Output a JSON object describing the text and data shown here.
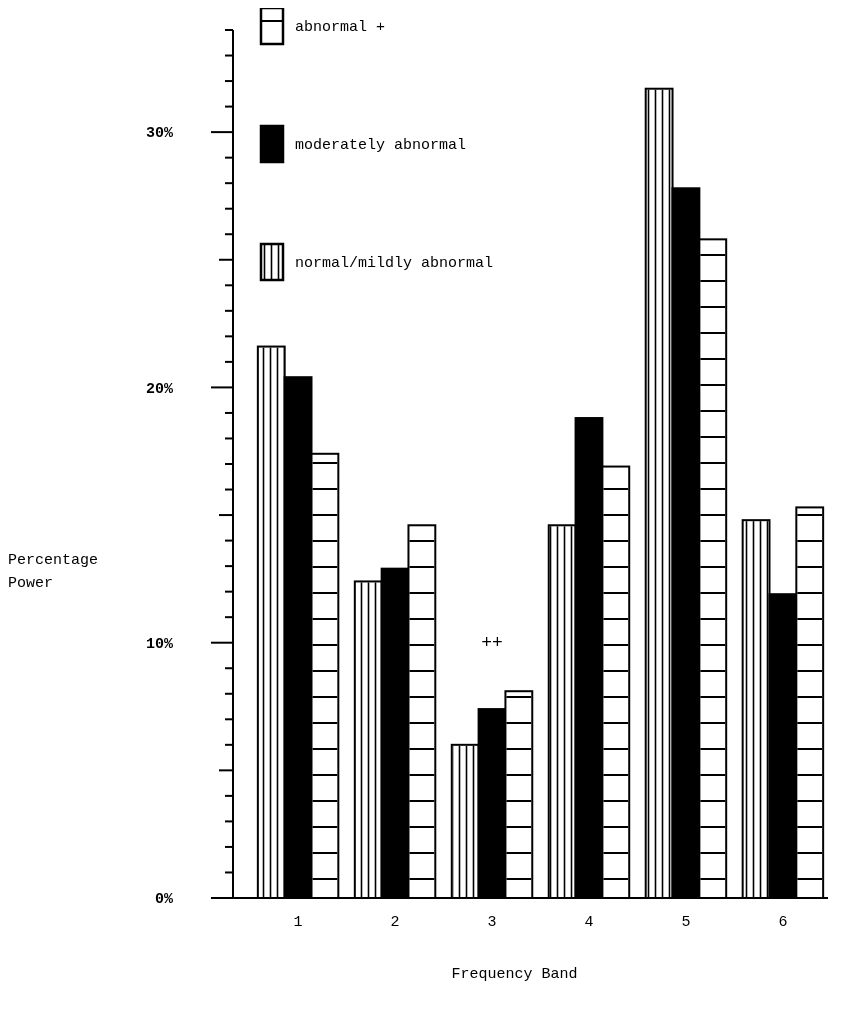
{
  "chart_data": {
    "type": "bar",
    "xlabel": "Frequency Band",
    "ylabel": "Percentage Power",
    "categories": [
      "1",
      "2",
      "3",
      "4",
      "5",
      "6"
    ],
    "series": [
      {
        "name": "normal/mildly abnormal",
        "color": "#ffffff",
        "values": [
          21.6,
          12.4,
          6.0,
          14.6,
          31.7,
          14.8
        ]
      },
      {
        "name": "moderately abnormal",
        "color": "#000000",
        "values": [
          20.4,
          12.9,
          7.4,
          18.8,
          27.8,
          11.9
        ]
      },
      {
        "name": "abnormal +",
        "color": "#ffffff",
        "values": [
          17.4,
          14.6,
          8.1,
          16.9,
          25.8,
          15.3
        ]
      }
    ],
    "ylim": [
      0,
      34
    ],
    "yticks": [
      {
        "value": 0,
        "label": "0%"
      },
      {
        "value": 1,
        "label": null
      },
      {
        "value": 2,
        "label": null
      },
      {
        "value": 3,
        "label": null
      },
      {
        "value": 4,
        "label": null
      },
      {
        "value": 5,
        "label": null
      },
      {
        "value": 6,
        "label": null
      },
      {
        "value": 7,
        "label": null
      },
      {
        "value": 8,
        "label": null
      },
      {
        "value": 9,
        "label": null
      },
      {
        "value": 10,
        "label": "10%"
      },
      {
        "value": 11,
        "label": null
      },
      {
        "value": 12,
        "label": null
      },
      {
        "value": 13,
        "label": null
      },
      {
        "value": 14,
        "label": null
      },
      {
        "value": 15,
        "label": null
      },
      {
        "value": 16,
        "label": null
      },
      {
        "value": 17,
        "label": null
      },
      {
        "value": 18,
        "label": null
      },
      {
        "value": 19,
        "label": null
      },
      {
        "value": 20,
        "label": "20%"
      },
      {
        "value": 21,
        "label": null
      },
      {
        "value": 22,
        "label": null
      },
      {
        "value": 23,
        "label": null
      },
      {
        "value": 24,
        "label": null
      },
      {
        "value": 25,
        "label": null
      },
      {
        "value": 26,
        "label": null
      },
      {
        "value": 27,
        "label": null
      },
      {
        "value": 28,
        "label": null
      },
      {
        "value": 29,
        "label": null
      },
      {
        "value": 30,
        "label": "30%"
      },
      {
        "value": 31,
        "label": null
      },
      {
        "value": 32,
        "label": null
      },
      {
        "value": 33,
        "label": null
      },
      {
        "value": 34,
        "label": null
      }
    ],
    "annotations": [
      "++"
    ],
    "legend": "top left",
    "grid": false
  }
}
